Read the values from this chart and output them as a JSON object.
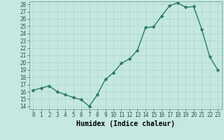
{
  "x": [
    0,
    1,
    2,
    3,
    4,
    5,
    6,
    7,
    8,
    9,
    10,
    11,
    12,
    13,
    14,
    15,
    16,
    17,
    18,
    19,
    20,
    21,
    22,
    23
  ],
  "y": [
    16.2,
    16.5,
    16.8,
    16.0,
    15.6,
    15.2,
    14.9,
    14.0,
    15.6,
    17.7,
    18.6,
    19.9,
    20.5,
    21.7,
    24.8,
    24.9,
    26.4,
    27.8,
    28.2,
    27.6,
    27.7,
    24.6,
    20.8,
    19.0
  ],
  "xlabel": "Humidex (Indice chaleur)",
  "line_color": "#2a7a6a",
  "marker_color": "#2a7a6a",
  "bg_color": "#c5e8e0",
  "grid_color": "#b0d8ce",
  "ylim_min": 13.6,
  "ylim_max": 28.4,
  "xlim_min": -0.5,
  "xlim_max": 23.5,
  "yticks": [
    14,
    15,
    16,
    17,
    18,
    19,
    20,
    21,
    22,
    23,
    24,
    25,
    26,
    27,
    28
  ],
  "xticks": [
    0,
    1,
    2,
    3,
    4,
    5,
    6,
    7,
    8,
    9,
    10,
    11,
    12,
    13,
    14,
    15,
    16,
    17,
    18,
    19,
    20,
    21,
    22,
    23
  ],
  "tick_label_fontsize": 5.5,
  "xlabel_fontsize": 7.0,
  "line_width": 1.0,
  "marker_size": 2.5
}
